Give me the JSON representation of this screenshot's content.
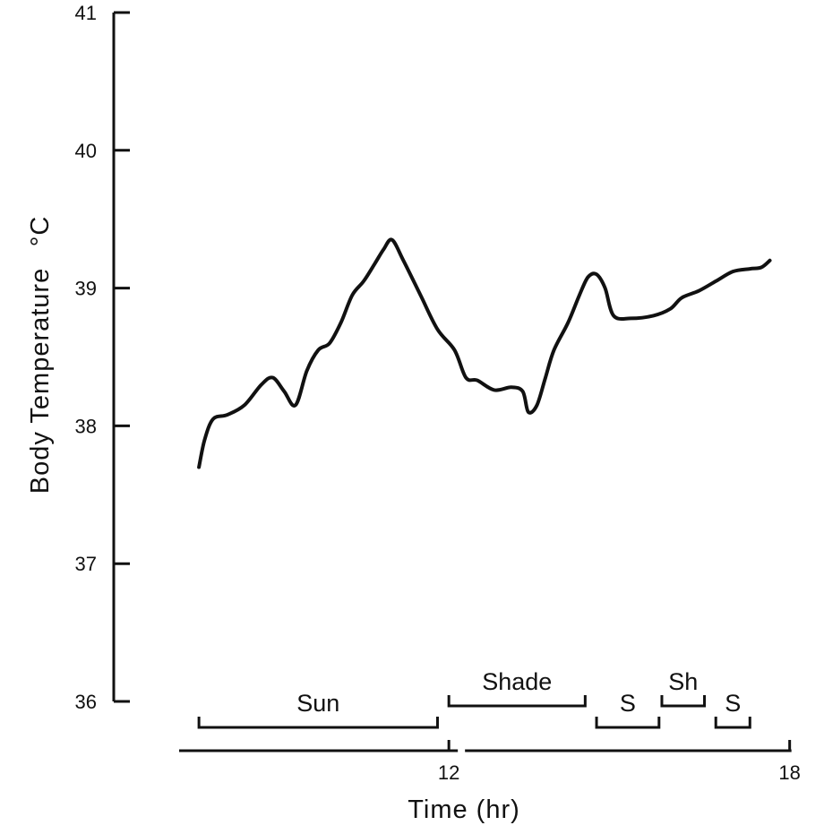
{
  "chart_data": {
    "type": "line",
    "title": "",
    "xlabel": "Time  (hr)",
    "ylabel": "Body Temperature",
    "ylabel_unit": "°C",
    "xlim": [
      6.1,
      18.1
    ],
    "ylim": [
      36,
      41
    ],
    "y_ticks": [
      "36",
      "37",
      "38",
      "39",
      "40",
      "41"
    ],
    "x_ticks": [
      "12",
      "18"
    ],
    "grid": false,
    "series": [
      {
        "points": [
          [
            7.6,
            37.7
          ],
          [
            7.7,
            37.9
          ],
          [
            7.85,
            38.05
          ],
          [
            8.1,
            38.08
          ],
          [
            8.4,
            38.15
          ],
          [
            8.7,
            38.3
          ],
          [
            8.9,
            38.35
          ],
          [
            9.1,
            38.25
          ],
          [
            9.3,
            38.15
          ],
          [
            9.5,
            38.4
          ],
          [
            9.7,
            38.55
          ],
          [
            9.9,
            38.6
          ],
          [
            10.1,
            38.75
          ],
          [
            10.3,
            38.95
          ],
          [
            10.5,
            39.05
          ],
          [
            10.7,
            39.18
          ],
          [
            10.85,
            39.28
          ],
          [
            11.0,
            39.35
          ],
          [
            11.2,
            39.2
          ],
          [
            11.5,
            38.95
          ],
          [
            11.8,
            38.7
          ],
          [
            12.1,
            38.55
          ],
          [
            12.3,
            38.35
          ],
          [
            12.5,
            38.33
          ],
          [
            12.8,
            38.26
          ],
          [
            13.1,
            38.28
          ],
          [
            13.3,
            38.25
          ],
          [
            13.4,
            38.1
          ],
          [
            13.55,
            38.15
          ],
          [
            13.7,
            38.35
          ],
          [
            13.85,
            38.55
          ],
          [
            14.1,
            38.75
          ],
          [
            14.3,
            38.95
          ],
          [
            14.45,
            39.08
          ],
          [
            14.6,
            39.1
          ],
          [
            14.75,
            39.0
          ],
          [
            14.9,
            38.8
          ],
          [
            15.2,
            38.78
          ],
          [
            15.6,
            38.8
          ],
          [
            15.9,
            38.85
          ],
          [
            16.1,
            38.93
          ],
          [
            16.4,
            38.98
          ],
          [
            16.7,
            39.05
          ],
          [
            17.0,
            39.12
          ],
          [
            17.3,
            39.14
          ],
          [
            17.5,
            39.15
          ],
          [
            17.65,
            39.2
          ]
        ]
      }
    ],
    "periods": [
      {
        "label": "Sun",
        "start": 7.6,
        "end": 11.8,
        "level": 0
      },
      {
        "label": "Shade",
        "start": 12.0,
        "end": 14.4,
        "level": 1
      },
      {
        "label": "S",
        "start": 14.6,
        "end": 15.7,
        "level": 0
      },
      {
        "label": "Sh",
        "start": 15.75,
        "end": 16.5,
        "level": 1
      },
      {
        "label": "S",
        "start": 16.7,
        "end": 17.3,
        "level": 0
      }
    ]
  }
}
